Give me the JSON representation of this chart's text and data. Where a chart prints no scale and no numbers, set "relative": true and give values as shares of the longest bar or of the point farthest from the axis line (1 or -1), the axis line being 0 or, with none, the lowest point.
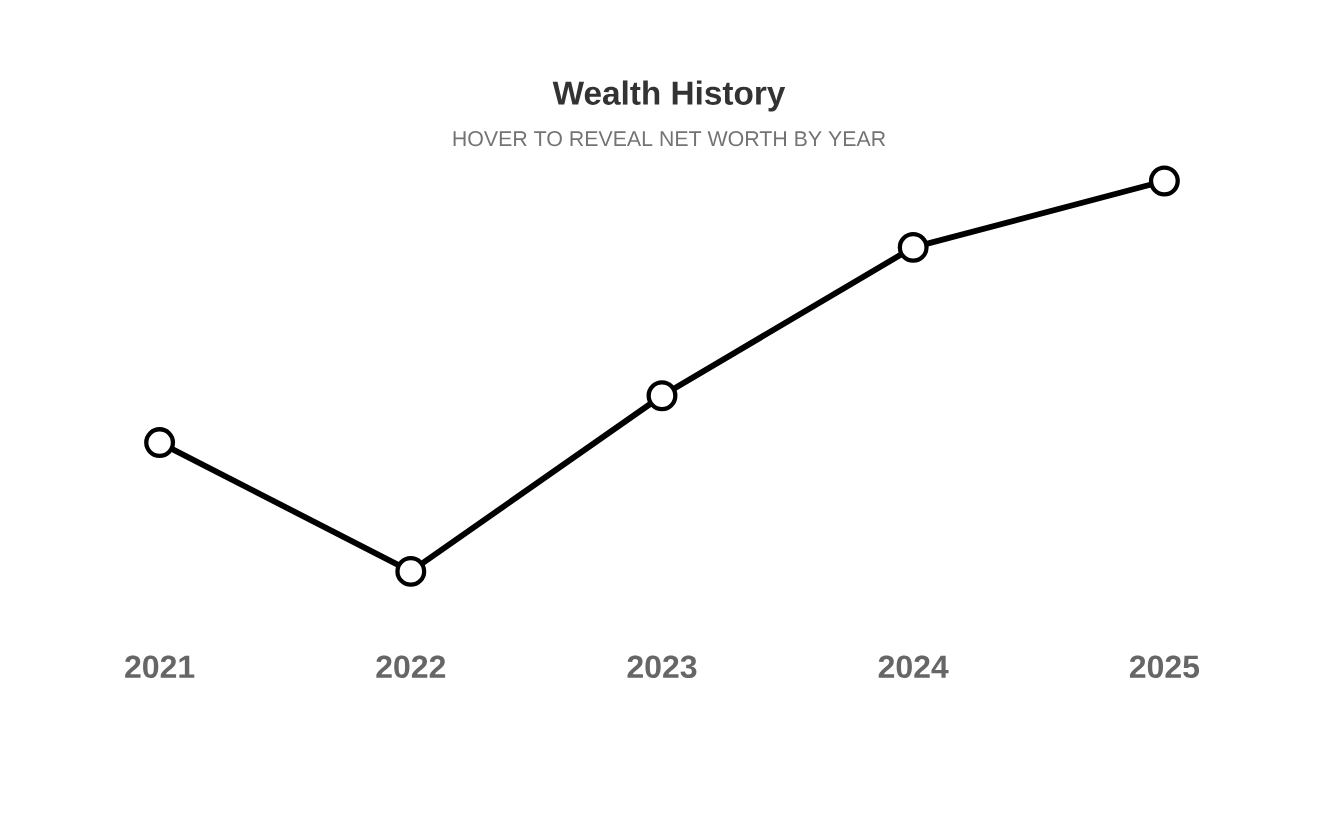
{
  "chart_data": {
    "type": "line",
    "title": "Wealth History",
    "subtitle": "HOVER TO REVEAL NET WORTH BY YEAR",
    "categories": [
      "2021",
      "2022",
      "2023",
      "2024",
      "2025"
    ],
    "values": [
      0.33,
      0,
      0.45,
      0.83,
      1
    ],
    "color": "#000000",
    "relative": true,
    "marker": "circle",
    "line_style": "solid"
  }
}
